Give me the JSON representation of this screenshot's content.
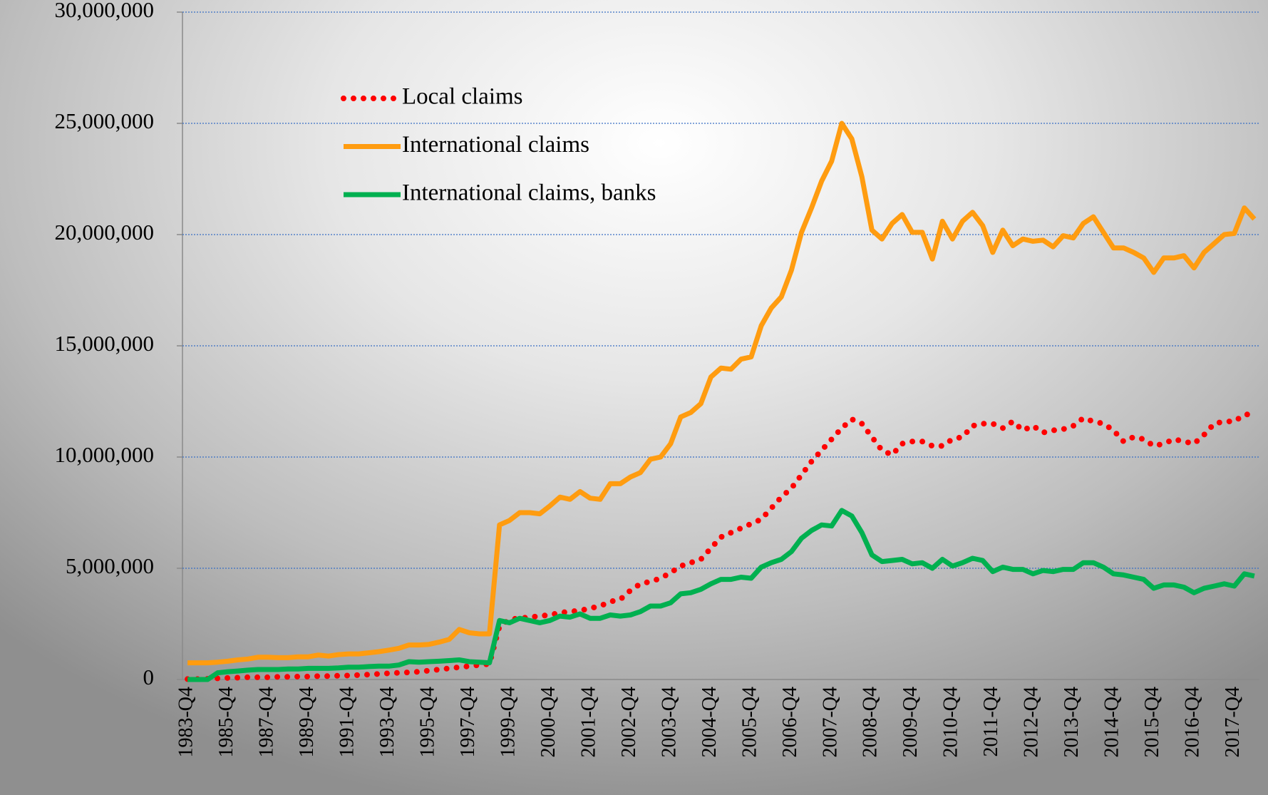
{
  "chart_data": {
    "type": "line",
    "categories": [
      "1983-Q4",
      null,
      null,
      null,
      "1985-Q4",
      null,
      null,
      null,
      "1987-Q4",
      null,
      null,
      null,
      "1989-Q4",
      null,
      null,
      null,
      "1991-Q4",
      null,
      null,
      null,
      "1993-Q4",
      null,
      null,
      null,
      "1995-Q4",
      null,
      null,
      null,
      "1997-Q4",
      null,
      null,
      null,
      "1999-Q4",
      null,
      null,
      null,
      "2000-Q4",
      null,
      null,
      null,
      "2001-Q4",
      null,
      null,
      null,
      "2002-Q4",
      null,
      null,
      null,
      "2003-Q4",
      null,
      null,
      null,
      "2004-Q4",
      null,
      null,
      null,
      "2005-Q4",
      null,
      null,
      null,
      "2006-Q4",
      null,
      null,
      null,
      "2007-Q4",
      null,
      null,
      null,
      "2008-Q4",
      null,
      null,
      null,
      "2009-Q4",
      null,
      null,
      null,
      "2010-Q4",
      null,
      null,
      null,
      "2011-Q4",
      null,
      null,
      null,
      "2012-Q4",
      null,
      null,
      null,
      "2013-Q4",
      null,
      null,
      null,
      "2014-Q4",
      null,
      null,
      null,
      "2015-Q4",
      null,
      null,
      null,
      "2016-Q4",
      null,
      null,
      null,
      "2017-Q4",
      null,
      null
    ],
    "series": [
      {
        "name": "Local claims",
        "color": "#ff0000",
        "style": "dotted",
        "values": [
          20000,
          20000,
          30000,
          50000,
          70000,
          80000,
          100000,
          100000,
          100000,
          120000,
          120000,
          130000,
          130000,
          150000,
          150000,
          170000,
          180000,
          200000,
          220000,
          250000,
          280000,
          300000,
          320000,
          350000,
          400000,
          450000,
          500000,
          550000,
          600000,
          650000,
          700000,
          2400000,
          2700000,
          2750000,
          2800000,
          2850000,
          2900000,
          3000000,
          3050000,
          3100000,
          3200000,
          3300000,
          3500000,
          3600000,
          4000000,
          4300000,
          4400000,
          4550000,
          4800000,
          5100000,
          5250000,
          5400000,
          5900000,
          6400000,
          6600000,
          6800000,
          7000000,
          7200000,
          7700000,
          8200000,
          8600000,
          9200000,
          9800000,
          10300000,
          10800000,
          11300000,
          11700000,
          11500000,
          10900000,
          10300000,
          10100000,
          10600000,
          10700000,
          10700000,
          10500000,
          10500000,
          10800000,
          10900000,
          11400000,
          11500000,
          11500000,
          11300000,
          11600000,
          11200000,
          11400000,
          11100000,
          11200000,
          11250000,
          11400000,
          11750000,
          11600000,
          11500000,
          11200000,
          10700000,
          10900000,
          10800000,
          10500000,
          10600000,
          10800000,
          10700000,
          10600000,
          11000000,
          11500000,
          11600000,
          11600000,
          11900000,
          11950000
        ]
      },
      {
        "name": "International claims",
        "color": "#ff9c10",
        "style": "solid",
        "values": [
          750000,
          750000,
          750000,
          780000,
          820000,
          880000,
          920000,
          1000000,
          1000000,
          980000,
          980000,
          1020000,
          1020000,
          1100000,
          1050000,
          1120000,
          1150000,
          1150000,
          1200000,
          1250000,
          1320000,
          1400000,
          1550000,
          1550000,
          1580000,
          1680000,
          1800000,
          2250000,
          2100000,
          2050000,
          2050000,
          6950000,
          7150000,
          7500000,
          7500000,
          7450000,
          7800000,
          8200000,
          8100000,
          8450000,
          8150000,
          8100000,
          8800000,
          8800000,
          9100000,
          9300000,
          9900000,
          10000000,
          10600000,
          11800000,
          12000000,
          12400000,
          13600000,
          14000000,
          13950000,
          14400000,
          14500000,
          15900000,
          16700000,
          17200000,
          18400000,
          20100000,
          21200000,
          22400000,
          23300000,
          25000000,
          24300000,
          22600000,
          20200000,
          19800000,
          20500000,
          20900000,
          20100000,
          20100000,
          18900000,
          20600000,
          19800000,
          20600000,
          21000000,
          20400000,
          19200000,
          20200000,
          19500000,
          19800000,
          19700000,
          19750000,
          19450000,
          19950000,
          19850000,
          20500000,
          20800000,
          20100000,
          19400000,
          19400000,
          19200000,
          18950000,
          18300000,
          18950000,
          18950000,
          19050000,
          18500000,
          19200000,
          19600000,
          20000000,
          20050000,
          21200000,
          20700000
        ]
      },
      {
        "name": "International claims, banks",
        "color": "#00b050",
        "style": "solid",
        "values": [
          0,
          0,
          0,
          300000,
          350000,
          380000,
          420000,
          450000,
          450000,
          450000,
          470000,
          470000,
          500000,
          500000,
          500000,
          520000,
          550000,
          550000,
          580000,
          600000,
          600000,
          650000,
          800000,
          780000,
          800000,
          820000,
          850000,
          880000,
          800000,
          780000,
          750000,
          2650000,
          2550000,
          2750000,
          2650000,
          2550000,
          2650000,
          2850000,
          2800000,
          2950000,
          2750000,
          2750000,
          2900000,
          2850000,
          2900000,
          3050000,
          3300000,
          3300000,
          3450000,
          3850000,
          3900000,
          4050000,
          4300000,
          4500000,
          4500000,
          4600000,
          4550000,
          5050000,
          5250000,
          5400000,
          5750000,
          6350000,
          6700000,
          6950000,
          6900000,
          7600000,
          7350000,
          6600000,
          5600000,
          5300000,
          5350000,
          5400000,
          5200000,
          5250000,
          5000000,
          5400000,
          5100000,
          5250000,
          5450000,
          5350000,
          4850000,
          5050000,
          4950000,
          4950000,
          4750000,
          4900000,
          4850000,
          4950000,
          4950000,
          5250000,
          5250000,
          5050000,
          4750000,
          4700000,
          4600000,
          4500000,
          4100000,
          4250000,
          4250000,
          4150000,
          3900000,
          4100000,
          4200000,
          4300000,
          4200000,
          4750000,
          4650000
        ]
      }
    ],
    "ylim": [
      0,
      30000000
    ],
    "yticks": [
      0,
      {
        "value": 5000000,
        "label": "5,000,000"
      },
      {
        "value": 10000000,
        "label": "10,000,000"
      },
      {
        "value": 15000000,
        "label": "15,000,000"
      },
      {
        "value": 20000000,
        "label": "20,000,000"
      },
      {
        "value": 25000000,
        "label": "25,000,000"
      },
      {
        "value": 30000000,
        "label": "30,000,000"
      }
    ],
    "grid": true,
    "legend": "upper left"
  }
}
